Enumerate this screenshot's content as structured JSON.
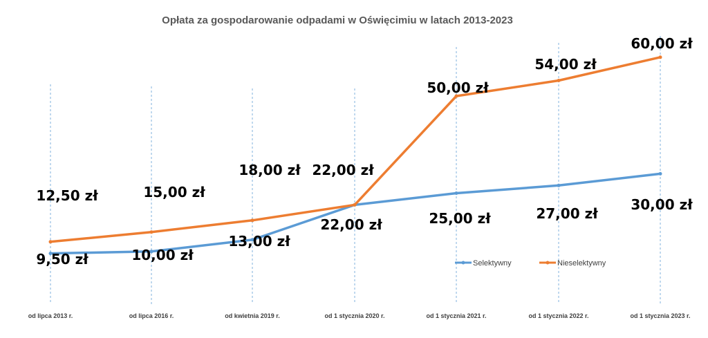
{
  "chart_data": {
    "type": "line",
    "title": "Opłata za gospodarowanie odpadami w Oświęcimiu w latach 2013-2023",
    "categories": [
      "od lipca 2013 r.",
      "od lipca 2016 r.",
      "od kwietnia 2019 r.",
      "od 1 stycznia 2020 r.",
      "od 1 stycznia 2021 r.",
      "od 1 stycznia 2022 r.",
      "od 1 stycznia 2023 r."
    ],
    "series": [
      {
        "name": "Selektywny",
        "color": "#5b9bd5",
        "values": [
          9.5,
          10,
          13,
          22,
          25,
          27,
          30
        ],
        "labels": [
          "9,50 zł",
          "10,00 zł",
          "13,00 zł",
          "22,00 zł",
          "25,00 zł",
          "27,00 zł",
          "30,00 zł"
        ]
      },
      {
        "name": "Nieselektywny",
        "color": "#ed7d31",
        "values": [
          12.5,
          15,
          18,
          22,
          50,
          54,
          60
        ],
        "labels": [
          "12,50 zł",
          "15,00 zł",
          "18,00 zł",
          "22,00 zł",
          "50,00 zł",
          "54,00 zł",
          "60,00 zł"
        ]
      }
    ],
    "grid": "vertical-dashed",
    "legend": "right"
  }
}
